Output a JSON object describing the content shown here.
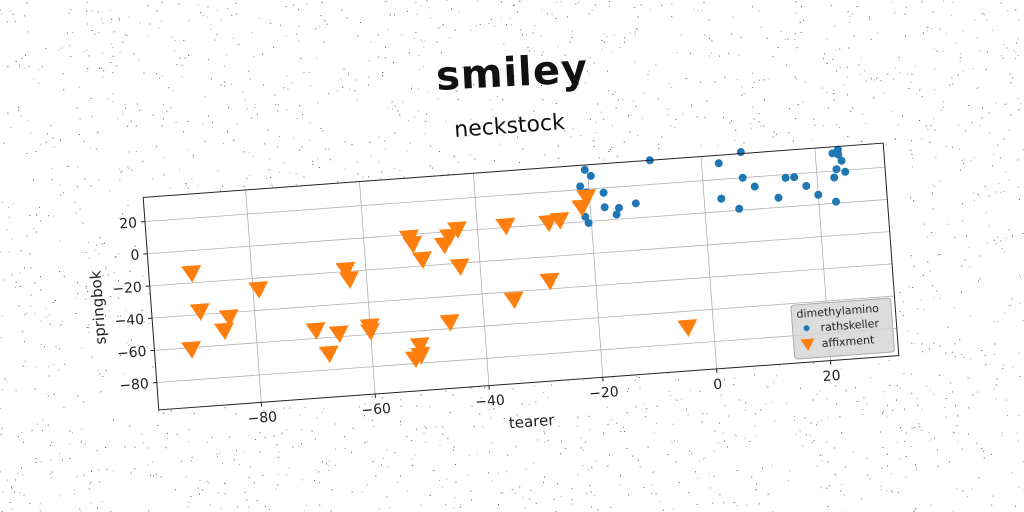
{
  "figure": {
    "suptitle": "smiley"
  },
  "chart_data": {
    "type": "scatter",
    "title": "neckstock",
    "xlabel": "tearer",
    "ylabel": "springbok",
    "xlim": [
      -98,
      32
    ],
    "ylim": [
      -97,
      35
    ],
    "xticks": [
      -80,
      -60,
      -40,
      -20,
      0,
      20
    ],
    "yticks": [
      -80,
      -60,
      -40,
      -20,
      0,
      20
    ],
    "grid": true,
    "legend": {
      "title": "dimethylamino",
      "position": "lower-right"
    },
    "series": [
      {
        "name": "rathskeller",
        "marker": "circle",
        "color": "#1f77b4",
        "points": [
          [
            -21.5,
            22
          ],
          [
            -20.5,
            32
          ],
          [
            -19.5,
            28
          ],
          [
            -20.5,
            18
          ],
          [
            -17.5,
            8
          ],
          [
            -17.5,
            17
          ],
          [
            -15.5,
            3
          ],
          [
            -15.0,
            7
          ],
          [
            -12.0,
            9
          ],
          [
            -20.5,
            -1
          ],
          [
            -21.0,
            3
          ],
          [
            -9.0,
            35
          ],
          [
            3.0,
            30
          ],
          [
            7.0,
            36
          ],
          [
            7.0,
            20
          ],
          [
            9.0,
            14
          ],
          [
            3.0,
            8
          ],
          [
            6.0,
            1
          ],
          [
            13.0,
            6
          ],
          [
            14.5,
            18
          ],
          [
            16.0,
            18
          ],
          [
            18.0,
            12
          ],
          [
            20.0,
            6
          ],
          [
            23.0,
            1
          ],
          [
            23.0,
            16
          ],
          [
            23.5,
            21
          ],
          [
            25.0,
            19
          ],
          [
            24.5,
            26
          ],
          [
            23.0,
            31
          ],
          [
            24.0,
            30
          ],
          [
            24.0,
            33
          ]
        ]
      },
      {
        "name": "affixment",
        "marker": "triangle-down",
        "color": "#ff7f0e",
        "points": [
          [
            -90.5,
            -14
          ],
          [
            -89.5,
            -38
          ],
          [
            -85.5,
            -51
          ],
          [
            -84.5,
            -43
          ],
          [
            -91.5,
            -61
          ],
          [
            -79.0,
            -27
          ],
          [
            -69.5,
            -55
          ],
          [
            -67.5,
            -70
          ],
          [
            -65.5,
            -58
          ],
          [
            -63.5,
            -19
          ],
          [
            -63.0,
            -25
          ],
          [
            -60.0,
            -55
          ],
          [
            -60.0,
            -58
          ],
          [
            -52.5,
            -77
          ],
          [
            -51.5,
            -69
          ],
          [
            -51.5,
            -75
          ],
          [
            -50.0,
            -16
          ],
          [
            -52.0,
            -2
          ],
          [
            -51.5,
            -6
          ],
          [
            -46.0,
            -56
          ],
          [
            -46.0,
            -8
          ],
          [
            -45.0,
            -3
          ],
          [
            -43.5,
            1
          ],
          [
            -43.5,
            -22
          ],
          [
            -35.0,
            1
          ],
          [
            -34.5,
            -45
          ],
          [
            -27.5,
            1
          ],
          [
            -28.0,
            -35
          ],
          [
            -25.5,
            2
          ],
          [
            -21.5,
            9
          ],
          [
            -20.5,
            15
          ],
          [
            -4.5,
            -70
          ]
        ]
      }
    ]
  }
}
